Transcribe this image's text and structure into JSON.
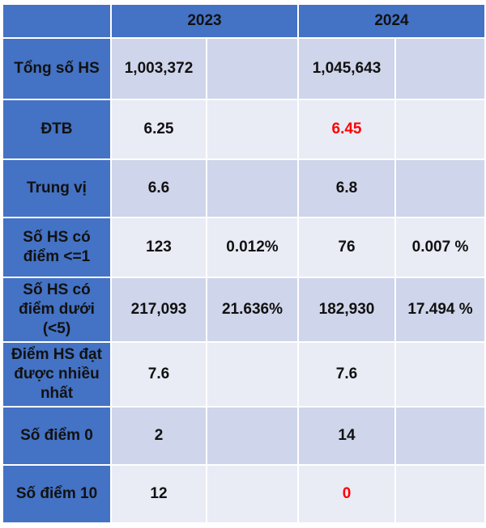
{
  "header": {
    "col_2023": "2023",
    "col_2024": "2024"
  },
  "rows": [
    {
      "label": "Tổng số HS",
      "v2023": "1,003,372",
      "p2023": "",
      "v2024": "1,045,643",
      "p2024": ""
    },
    {
      "label": "ĐTB",
      "v2023": "6.25",
      "p2023": "",
      "v2024": "6.45",
      "p2024": ""
    },
    {
      "label": "Trung vị",
      "v2023": "6.6",
      "p2023": "",
      "v2024": "6.8",
      "p2024": ""
    },
    {
      "label": "Số HS có điểm <=1",
      "v2023": "123",
      "p2023": "0.012%",
      "v2024": "76",
      "p2024": "0.007 %"
    },
    {
      "label": "Số HS có điểm dưới (<5)",
      "v2023": "217,093",
      "p2023": "21.636%",
      "v2024": "182,930",
      "p2024": "17.494 %"
    },
    {
      "label": "Điểm HS đạt được nhiều nhất",
      "v2023": "7.6",
      "p2023": "",
      "v2024": "7.6",
      "p2024": ""
    },
    {
      "label": "Số điểm 0",
      "v2023": "2",
      "p2023": "",
      "v2024": "14",
      "p2024": ""
    },
    {
      "label": "Số điểm 10",
      "v2023": "12",
      "p2023": "",
      "v2024": "0",
      "p2024": ""
    }
  ],
  "colors": {
    "header_bg": "#4472c4",
    "row_dark": "#cfd5ea",
    "row_light": "#e9ebf5",
    "highlight": "#ff0000"
  }
}
